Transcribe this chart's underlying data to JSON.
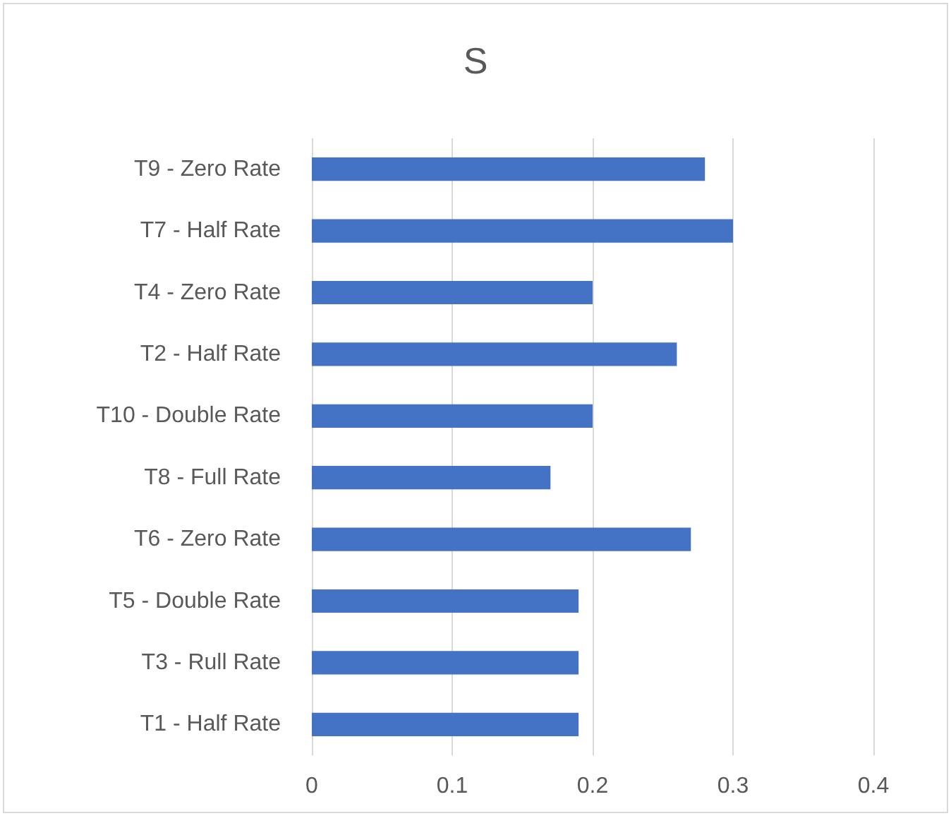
{
  "chart_data": {
    "type": "bar",
    "title": "S",
    "orientation": "horizontal",
    "categories": [
      "T9 - Zero Rate",
      "T7 - Half Rate",
      "T4 - Zero Rate",
      "T2 - Half Rate",
      "T10 - Double Rate",
      "T8 - Full Rate",
      "T6 - Zero Rate",
      "T5 - Double Rate",
      "T3 - Rull Rate",
      "T1 - Half Rate"
    ],
    "values": [
      0.28,
      0.3,
      0.2,
      0.26,
      0.2,
      0.17,
      0.27,
      0.19,
      0.19,
      0.19
    ],
    "color": "#4472c4",
    "xlim": [
      0,
      0.4
    ],
    "xticks": [
      0,
      0.1,
      0.2,
      0.3,
      0.4
    ],
    "grid": "x"
  }
}
